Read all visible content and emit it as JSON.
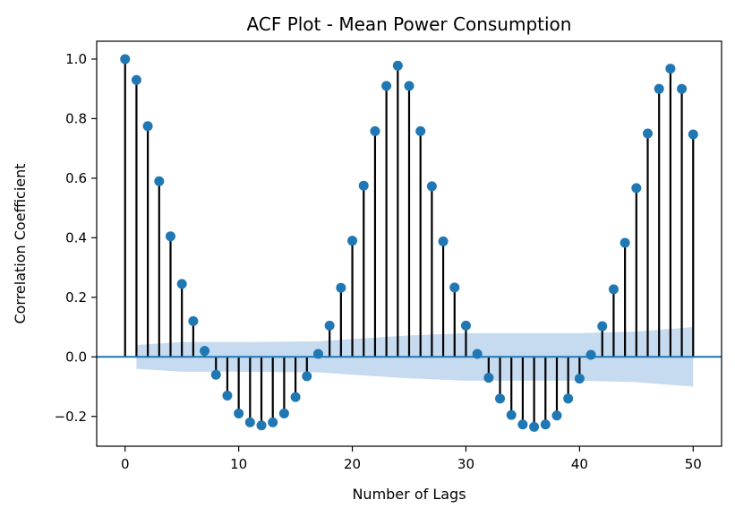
{
  "chart_data": {
    "type": "stem",
    "title": "ACF Plot - Mean Power Consumption",
    "xlabel": "Number of Lags",
    "ylabel": "Correlation Coefficient",
    "xlim": [
      -2.5,
      52.5
    ],
    "ylim": [
      -0.3,
      1.06
    ],
    "xticks": [
      0,
      10,
      20,
      30,
      40,
      50
    ],
    "yticks": [
      -0.2,
      0.0,
      0.2,
      0.4,
      0.6,
      0.8,
      1.0
    ],
    "ytick_labels": [
      "−0.2",
      "0.0",
      "0.2",
      "0.4",
      "0.6",
      "0.8",
      "1.0"
    ],
    "grid": false,
    "lags": [
      0,
      1,
      2,
      3,
      4,
      5,
      6,
      7,
      8,
      9,
      10,
      11,
      12,
      13,
      14,
      15,
      16,
      17,
      18,
      19,
      20,
      21,
      22,
      23,
      24,
      25,
      26,
      27,
      28,
      29,
      30,
      31,
      32,
      33,
      34,
      35,
      36,
      37,
      38,
      39,
      40,
      41,
      42,
      43,
      44,
      45,
      46,
      47,
      48,
      49,
      50
    ],
    "values": [
      1.0,
      0.93,
      0.775,
      0.59,
      0.405,
      0.245,
      0.12,
      0.02,
      -0.06,
      -0.13,
      -0.19,
      -0.22,
      -0.23,
      -0.22,
      -0.19,
      -0.135,
      -0.065,
      0.01,
      0.105,
      0.232,
      0.39,
      0.575,
      0.758,
      0.91,
      0.978,
      0.91,
      0.758,
      0.573,
      0.388,
      0.233,
      0.105,
      0.01,
      -0.07,
      -0.14,
      -0.195,
      -0.227,
      -0.235,
      -0.227,
      -0.197,
      -0.14,
      -0.073,
      0.007,
      0.103,
      0.227,
      0.383,
      0.567,
      0.75,
      0.9,
      0.968,
      0.9,
      0.747
    ],
    "confidence_band": {
      "lags": [
        1,
        5,
        10,
        17,
        20,
        25,
        30,
        35,
        40,
        45,
        50
      ],
      "upper": [
        0.04,
        0.05,
        0.05,
        0.052,
        0.06,
        0.072,
        0.08,
        0.08,
        0.08,
        0.085,
        0.1
      ],
      "lower": [
        -0.04,
        -0.05,
        -0.05,
        -0.052,
        -0.06,
        -0.072,
        -0.08,
        -0.08,
        -0.08,
        -0.085,
        -0.1
      ]
    },
    "colors": {
      "marker": "#1f77b4",
      "stem": "#000000",
      "band": "#c6dbef",
      "zero_line": "#1f77b4"
    }
  }
}
